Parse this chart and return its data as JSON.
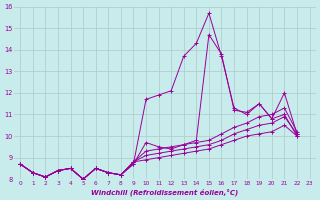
{
  "xlabel": "Windchill (Refroidissement éolien,°C)",
  "background_color": "#c8ecec",
  "grid_color": "#b0c8c8",
  "line_color": "#990099",
  "xlim": [
    -0.5,
    23.5
  ],
  "ylim": [
    8,
    16
  ],
  "yticks": [
    8,
    9,
    10,
    11,
    12,
    13,
    14,
    15,
    16
  ],
  "xticks": [
    0,
    1,
    2,
    3,
    4,
    5,
    6,
    7,
    8,
    9,
    10,
    11,
    12,
    13,
    14,
    15,
    16,
    17,
    18,
    19,
    20,
    21,
    22,
    23
  ],
  "series": [
    [
      8.7,
      8.3,
      8.1,
      8.4,
      8.5,
      8.0,
      8.5,
      8.3,
      8.2,
      8.7,
      11.7,
      11.9,
      12.1,
      13.7,
      14.3,
      15.7,
      13.7,
      11.3,
      11.0,
      11.5,
      10.8,
      12.0,
      10.1,
      null
    ],
    [
      8.7,
      8.3,
      8.1,
      8.4,
      8.5,
      8.0,
      8.5,
      8.3,
      8.2,
      8.7,
      9.7,
      9.5,
      9.4,
      9.6,
      9.8,
      14.7,
      13.8,
      11.2,
      11.1,
      11.5,
      10.8,
      11.0,
      10.0,
      null
    ],
    [
      8.7,
      8.3,
      8.1,
      8.4,
      8.5,
      8.0,
      8.5,
      8.3,
      8.2,
      8.8,
      9.3,
      9.4,
      9.5,
      9.6,
      9.7,
      9.8,
      10.1,
      10.4,
      10.6,
      10.9,
      11.0,
      11.3,
      10.2,
      null
    ],
    [
      8.7,
      8.3,
      8.1,
      8.4,
      8.5,
      8.0,
      8.5,
      8.3,
      8.2,
      8.8,
      9.1,
      9.2,
      9.3,
      9.4,
      9.5,
      9.6,
      9.8,
      10.1,
      10.3,
      10.5,
      10.6,
      10.9,
      10.1,
      null
    ],
    [
      8.7,
      8.3,
      8.1,
      8.4,
      8.5,
      8.0,
      8.5,
      8.3,
      8.2,
      8.8,
      8.9,
      9.0,
      9.1,
      9.2,
      9.3,
      9.4,
      9.6,
      9.8,
      10.0,
      10.1,
      10.2,
      10.5,
      10.0,
      null
    ]
  ]
}
